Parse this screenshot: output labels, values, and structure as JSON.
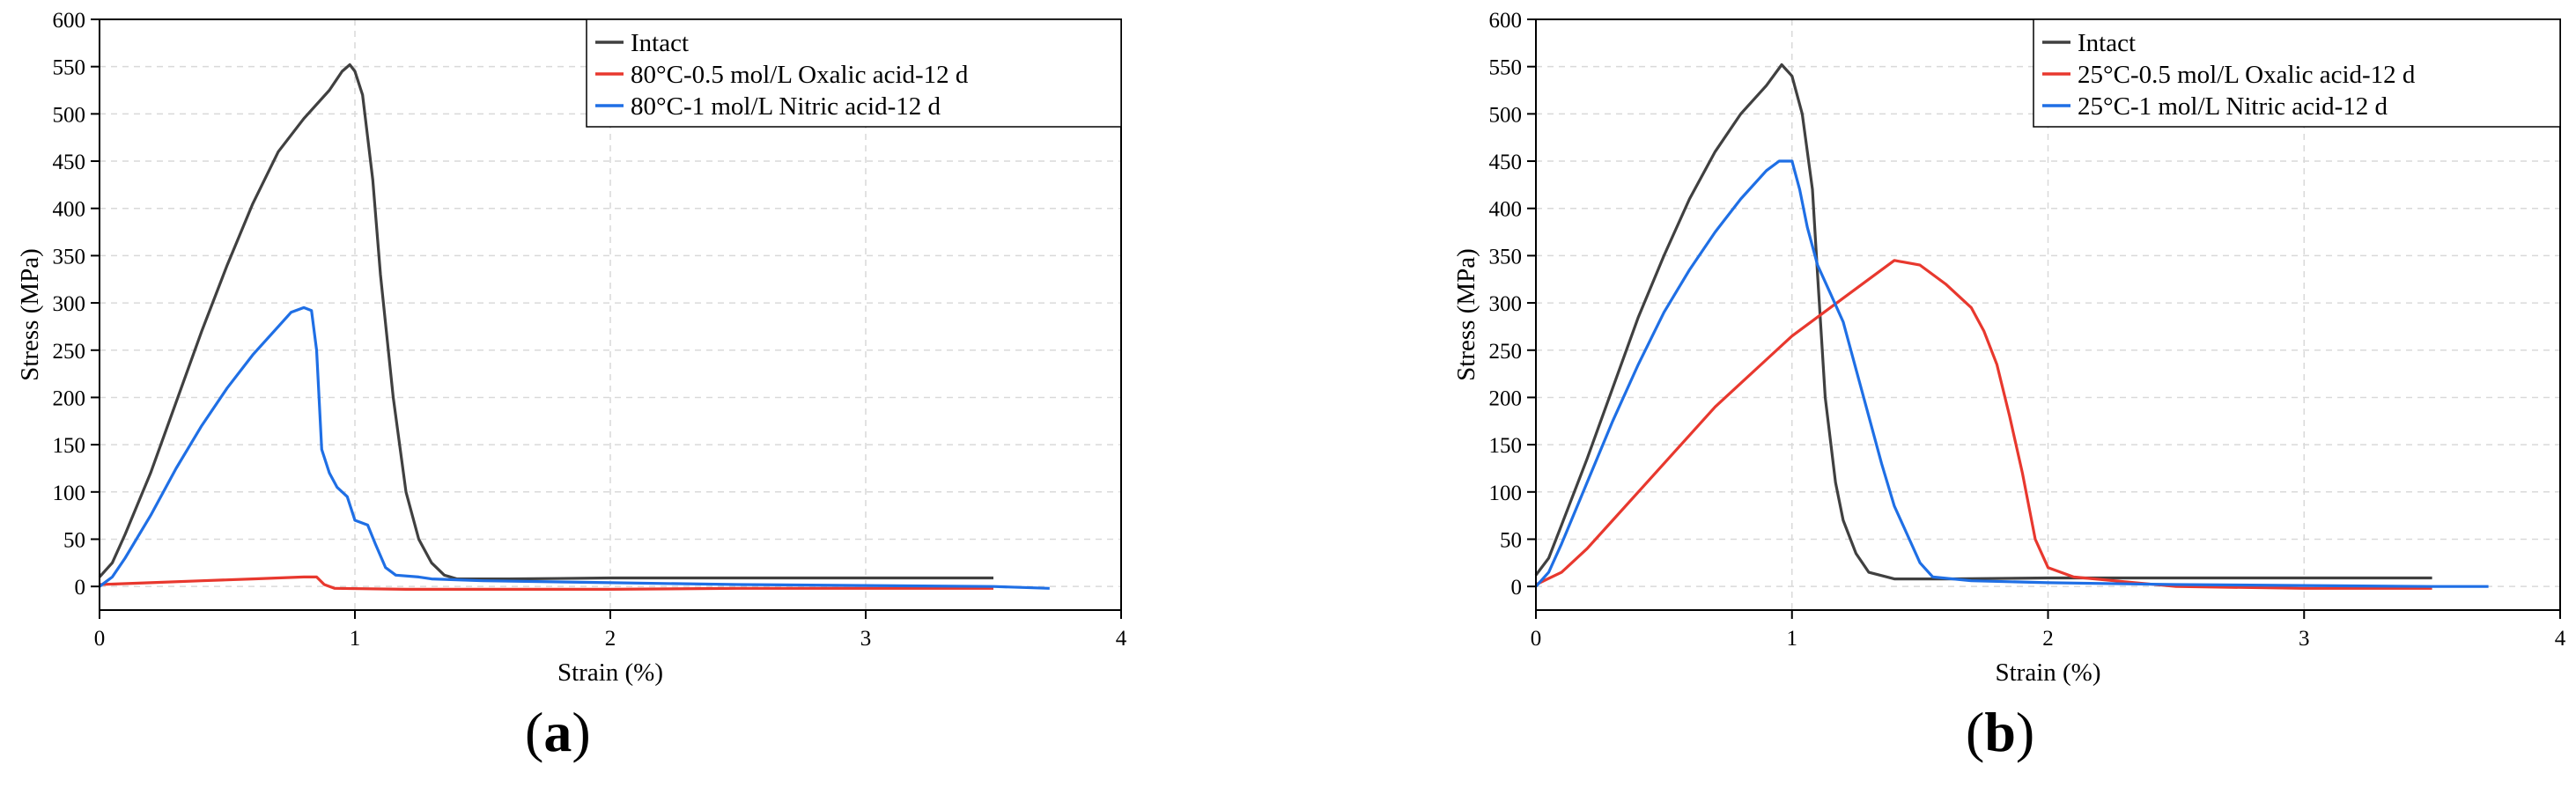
{
  "chart_data": [
    {
      "panel": "a",
      "type": "line",
      "xlabel": "Strain (%)",
      "ylabel": "Stress (MPa)",
      "xlim": [
        0,
        4
      ],
      "ylim": [
        -25,
        600
      ],
      "xticks": [
        0,
        1,
        2,
        3,
        4
      ],
      "yticks": [
        0,
        50,
        100,
        150,
        200,
        250,
        300,
        350,
        400,
        450,
        500,
        550,
        600
      ],
      "grid": true,
      "legend_position": "top-right",
      "series": [
        {
          "name": "Intact",
          "color": "#404040",
          "points": [
            [
              0,
              10
            ],
            [
              0.05,
              25
            ],
            [
              0.1,
              55
            ],
            [
              0.2,
              120
            ],
            [
              0.3,
              195
            ],
            [
              0.4,
              270
            ],
            [
              0.5,
              340
            ],
            [
              0.6,
              405
            ],
            [
              0.7,
              460
            ],
            [
              0.8,
              495
            ],
            [
              0.9,
              525
            ],
            [
              0.95,
              545
            ],
            [
              0.98,
              552
            ],
            [
              1.0,
              545
            ],
            [
              1.03,
              520
            ],
            [
              1.07,
              430
            ],
            [
              1.1,
              330
            ],
            [
              1.15,
              200
            ],
            [
              1.2,
              100
            ],
            [
              1.25,
              50
            ],
            [
              1.3,
              25
            ],
            [
              1.35,
              12
            ],
            [
              1.4,
              8
            ],
            [
              1.6,
              8
            ],
            [
              2.0,
              9
            ],
            [
              2.5,
              9
            ],
            [
              3.0,
              9
            ],
            [
              3.5,
              9
            ]
          ]
        },
        {
          "name": "80°C-0.5 mol/L Oxalic acid-12 d",
          "color": "#e8382e",
          "points": [
            [
              0,
              2
            ],
            [
              0.2,
              4
            ],
            [
              0.4,
              6
            ],
            [
              0.6,
              8
            ],
            [
              0.8,
              10
            ],
            [
              0.85,
              10
            ],
            [
              0.88,
              2
            ],
            [
              0.92,
              -2
            ],
            [
              1.2,
              -3
            ],
            [
              1.6,
              -3
            ],
            [
              2.0,
              -3
            ],
            [
              2.5,
              -2
            ],
            [
              3.0,
              -2
            ],
            [
              3.5,
              -2
            ]
          ]
        },
        {
          "name": "80°C-1 mol/L Nitric acid-12 d",
          "color": "#1f6fe5",
          "points": [
            [
              0,
              0
            ],
            [
              0.05,
              10
            ],
            [
              0.1,
              30
            ],
            [
              0.2,
              75
            ],
            [
              0.3,
              125
            ],
            [
              0.4,
              170
            ],
            [
              0.5,
              210
            ],
            [
              0.6,
              245
            ],
            [
              0.7,
              275
            ],
            [
              0.75,
              290
            ],
            [
              0.8,
              295
            ],
            [
              0.83,
              292
            ],
            [
              0.85,
              250
            ],
            [
              0.87,
              145
            ],
            [
              0.9,
              120
            ],
            [
              0.93,
              105
            ],
            [
              0.97,
              95
            ],
            [
              1.0,
              70
            ],
            [
              1.05,
              65
            ],
            [
              1.08,
              45
            ],
            [
              1.12,
              20
            ],
            [
              1.16,
              12
            ],
            [
              1.25,
              10
            ],
            [
              1.3,
              8
            ],
            [
              1.5,
              6
            ],
            [
              2.0,
              4
            ],
            [
              2.5,
              2
            ],
            [
              3.0,
              1
            ],
            [
              3.5,
              0
            ],
            [
              3.72,
              -2
            ]
          ]
        }
      ]
    },
    {
      "panel": "b",
      "type": "line",
      "xlabel": "Strain (%)",
      "ylabel": "Stress (MPa)",
      "xlim": [
        0,
        4
      ],
      "ylim": [
        -25,
        600
      ],
      "xticks": [
        0,
        1,
        2,
        3,
        4
      ],
      "yticks": [
        0,
        50,
        100,
        150,
        200,
        250,
        300,
        350,
        400,
        450,
        500,
        550,
        600
      ],
      "grid": true,
      "legend_position": "top-right",
      "series": [
        {
          "name": "Intact",
          "color": "#404040",
          "points": [
            [
              0,
              12
            ],
            [
              0.05,
              30
            ],
            [
              0.1,
              65
            ],
            [
              0.2,
              135
            ],
            [
              0.3,
              210
            ],
            [
              0.4,
              285
            ],
            [
              0.5,
              350
            ],
            [
              0.6,
              410
            ],
            [
              0.7,
              460
            ],
            [
              0.8,
              500
            ],
            [
              0.9,
              530
            ],
            [
              0.96,
              552
            ],
            [
              1.0,
              540
            ],
            [
              1.04,
              500
            ],
            [
              1.08,
              420
            ],
            [
              1.1,
              330
            ],
            [
              1.13,
              200
            ],
            [
              1.17,
              110
            ],
            [
              1.2,
              70
            ],
            [
              1.25,
              35
            ],
            [
              1.3,
              15
            ],
            [
              1.4,
              8
            ],
            [
              1.6,
              8
            ],
            [
              2.0,
              9
            ],
            [
              2.5,
              9
            ],
            [
              3.0,
              9
            ],
            [
              3.5,
              9
            ]
          ]
        },
        {
          "name": "25°C-0.5 mol/L Oxalic acid-12 d",
          "color": "#e8382e",
          "points": [
            [
              0,
              2
            ],
            [
              0.1,
              15
            ],
            [
              0.2,
              40
            ],
            [
              0.3,
              70
            ],
            [
              0.4,
              100
            ],
            [
              0.5,
              130
            ],
            [
              0.6,
              160
            ],
            [
              0.7,
              190
            ],
            [
              0.8,
              215
            ],
            [
              0.9,
              240
            ],
            [
              1.0,
              265
            ],
            [
              1.1,
              285
            ],
            [
              1.2,
              305
            ],
            [
              1.3,
              325
            ],
            [
              1.4,
              345
            ],
            [
              1.5,
              340
            ],
            [
              1.6,
              320
            ],
            [
              1.7,
              295
            ],
            [
              1.75,
              270
            ],
            [
              1.8,
              235
            ],
            [
              1.85,
              180
            ],
            [
              1.9,
              120
            ],
            [
              1.95,
              50
            ],
            [
              2.0,
              20
            ],
            [
              2.1,
              10
            ],
            [
              2.3,
              5
            ],
            [
              2.5,
              0
            ],
            [
              3.0,
              -2
            ],
            [
              3.5,
              -2
            ]
          ]
        },
        {
          "name": "25°C-1 mol/L Nitric acid-12 d",
          "color": "#1f6fe5",
          "points": [
            [
              0,
              0
            ],
            [
              0.05,
              15
            ],
            [
              0.1,
              45
            ],
            [
              0.2,
              110
            ],
            [
              0.3,
              175
            ],
            [
              0.4,
              235
            ],
            [
              0.5,
              290
            ],
            [
              0.6,
              335
            ],
            [
              0.7,
              375
            ],
            [
              0.8,
              410
            ],
            [
              0.9,
              440
            ],
            [
              0.95,
              450
            ],
            [
              1.0,
              450
            ],
            [
              1.03,
              420
            ],
            [
              1.06,
              380
            ],
            [
              1.1,
              340
            ],
            [
              1.15,
              310
            ],
            [
              1.2,
              280
            ],
            [
              1.25,
              230
            ],
            [
              1.3,
              180
            ],
            [
              1.35,
              130
            ],
            [
              1.4,
              85
            ],
            [
              1.45,
              55
            ],
            [
              1.5,
              25
            ],
            [
              1.55,
              10
            ],
            [
              1.7,
              6
            ],
            [
              2.0,
              4
            ],
            [
              2.5,
              2
            ],
            [
              3.0,
              1
            ],
            [
              3.5,
              0
            ],
            [
              3.72,
              0
            ]
          ]
        }
      ]
    }
  ],
  "panels": [
    {
      "tag": "a"
    },
    {
      "tag": "b"
    }
  ]
}
